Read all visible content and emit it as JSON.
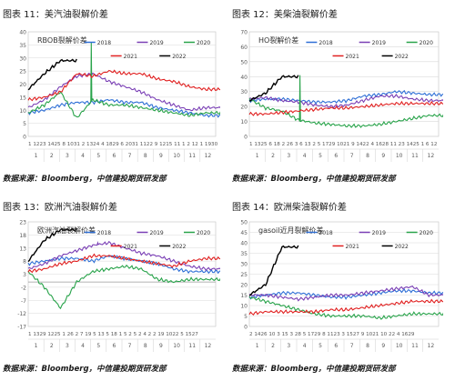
{
  "figures": [
    {
      "title": "图表 11：美汽油裂解价差",
      "source": "数据来源：Bloomberg，中信建投期货研发部"
    },
    {
      "title": "图表 12：美柴油裂解价差",
      "source": "数据来源：Bloomberg，中信建投期货研发部"
    },
    {
      "title": "图表 13：欧洲汽油裂解价差",
      "source": "数据来源：Bloomberg，中信建投期货研发部"
    },
    {
      "title": "图表 14：欧洲柴油裂解价差",
      "source": "数据来源：Bloomberg，中信建投期货研发部"
    }
  ],
  "colors": {
    "2018": "#2e6fd6",
    "2019": "#7a3fb5",
    "2020": "#28a34a",
    "2021": "#e02020",
    "2022": "#000000",
    "grid": "#d9d9d9",
    "axis_text": "#595959"
  },
  "chart_data": [
    {
      "type": "line",
      "title": "RBOB裂解价差",
      "legend": [
        "2018",
        "2019",
        "2020",
        "2021",
        "2022"
      ],
      "ylim": [
        0,
        40
      ],
      "yticks": [
        "0",
        "5",
        "10",
        "15",
        "20",
        "25",
        "30",
        "35",
        "40"
      ],
      "xtick_text": "1  1223 1425  8 1031  2 1324  4 1829  6 2031 1122  9 1215 11 1 2  12 1 1930",
      "month_labels": [
        "1",
        "2",
        "3",
        "4",
        "5",
        "6",
        "7",
        "8",
        "9",
        "10",
        "11",
        "12"
      ],
      "series": [
        {
          "name": "2018",
          "values": [
            9,
            10,
            12,
            13,
            13,
            14,
            13,
            13,
            11,
            10,
            9,
            8
          ]
        },
        {
          "name": "2019",
          "values": [
            11,
            14,
            19,
            23,
            24,
            21,
            19,
            17,
            14,
            12,
            10,
            11
          ]
        },
        {
          "name": "2020",
          "values": [
            9,
            12,
            17,
            7,
            14,
            12,
            12,
            11,
            10,
            9,
            8,
            9
          ]
        },
        {
          "name": "2021",
          "values": [
            14,
            15,
            17,
            24,
            23,
            25,
            24,
            24,
            22,
            21,
            19,
            18
          ]
        },
        {
          "name": "2022",
          "values": [
            18,
            24,
            29
          ]
        }
      ],
      "spikes": [
        {
          "name": "2020",
          "value": 36,
          "at_month": 4.9
        }
      ]
    },
    {
      "type": "line",
      "title": "HO裂解价差",
      "legend": [
        "2018",
        "2019",
        "2020",
        "2021",
        "2022"
      ],
      "ylim": [
        0,
        70
      ],
      "yticks": [
        "0",
        "10",
        "20",
        "30",
        "40",
        "50",
        "60",
        "70"
      ],
      "xtick_text": "1  1325  6  18  2 26  3  6  13 2  5 1729 1021  9 1422  4 1628 11 23 1425  1 6  12",
      "month_labels": [
        "1",
        "2",
        "3",
        "4",
        "5",
        "6",
        "7",
        "8",
        "9",
        "10",
        "11",
        "12"
      ],
      "series": [
        {
          "name": "2018",
          "values": [
            24,
            25,
            25,
            24,
            23,
            23,
            24,
            27,
            28,
            30,
            29,
            28
          ]
        },
        {
          "name": "2019",
          "values": [
            25,
            26,
            24,
            23,
            21,
            20,
            21,
            24,
            27,
            27,
            25,
            24
          ]
        },
        {
          "name": "2020",
          "values": [
            25,
            19,
            17,
            11,
            9,
            8,
            7,
            7,
            8,
            10,
            12,
            14
          ]
        },
        {
          "name": "2021",
          "values": [
            15,
            15,
            16,
            17,
            18,
            19,
            19,
            20,
            21,
            22,
            22,
            22
          ]
        },
        {
          "name": "2022",
          "values": [
            24,
            29,
            40
          ]
        }
      ],
      "spikes": [
        {
          "name": "2020",
          "value": 41,
          "at_month": 4.1
        }
      ]
    },
    {
      "type": "line",
      "title": "欧洲汽油裂解价差",
      "legend": [
        "2018",
        "2019",
        "2020",
        "2021",
        "2022"
      ],
      "ylim": [
        -17,
        23
      ],
      "yticks": [
        "-17",
        "-12",
        "-7",
        "-2",
        "3",
        "8",
        "13",
        "18",
        "23"
      ],
      "xtick_text": "1 1329 1225  1 26  2 7 19  5 13  5 18 1 5  2 5 2  4 2  2 19 1022  5 1527",
      "month_labels": [
        "1",
        "2",
        "3",
        "4",
        "5",
        "6",
        "7",
        "8",
        "9",
        "10",
        "11",
        "12"
      ],
      "series": [
        {
          "name": "2018",
          "values": [
            7,
            8,
            9,
            9,
            8,
            10,
            9,
            8,
            7,
            5,
            4,
            4
          ]
        },
        {
          "name": "2019",
          "values": [
            5,
            7,
            10,
            12,
            14,
            15,
            13,
            11,
            10,
            8,
            6,
            5
          ]
        },
        {
          "name": "2020",
          "values": [
            4,
            -2,
            -10,
            0,
            4,
            5,
            6,
            5,
            1,
            0,
            1,
            1
          ]
        },
        {
          "name": "2021",
          "values": [
            4,
            5,
            7,
            8,
            10,
            10,
            9,
            8,
            7,
            6,
            8,
            9
          ]
        },
        {
          "name": "2022",
          "values": [
            8,
            16,
            20
          ]
        }
      ],
      "spikes": [
        {
          "name": "2019",
          "value": 15,
          "at_month": 5.3
        }
      ]
    },
    {
      "type": "line",
      "title": "gasoil近月裂解价差",
      "legend": [
        "2018",
        "2019",
        "2020",
        "2021",
        "2022"
      ],
      "ylim": [
        0,
        50
      ],
      "yticks": [
        "0",
        "5",
        "10",
        "15",
        "20",
        "25",
        "30",
        "35",
        "40",
        "45",
        "50"
      ],
      "xtick_text": "2 1426 10 3 15  3 28  5 1729  8 1123  3 1527  9 1021 10 22  4 1629",
      "month_labels": [
        "1",
        "2",
        "3",
        "4",
        "5",
        "6",
        "7",
        "8",
        "9",
        "10",
        "11",
        "12"
      ],
      "series": [
        {
          "name": "2018",
          "values": [
            14,
            15,
            16,
            16,
            15,
            14,
            14,
            15,
            16,
            17,
            17,
            16
          ]
        },
        {
          "name": "2019",
          "values": [
            15,
            15,
            14,
            13,
            14,
            15,
            15,
            16,
            17,
            18,
            19,
            15
          ]
        },
        {
          "name": "2020",
          "values": [
            14,
            12,
            10,
            8,
            6,
            5,
            5,
            5,
            4,
            5,
            6,
            6
          ]
        },
        {
          "name": "2021",
          "values": [
            6,
            7,
            7,
            7,
            7,
            8,
            8,
            9,
            10,
            11,
            12,
            12
          ]
        },
        {
          "name": "2022",
          "values": [
            15,
            20,
            38
          ]
        }
      ],
      "spikes": []
    }
  ]
}
